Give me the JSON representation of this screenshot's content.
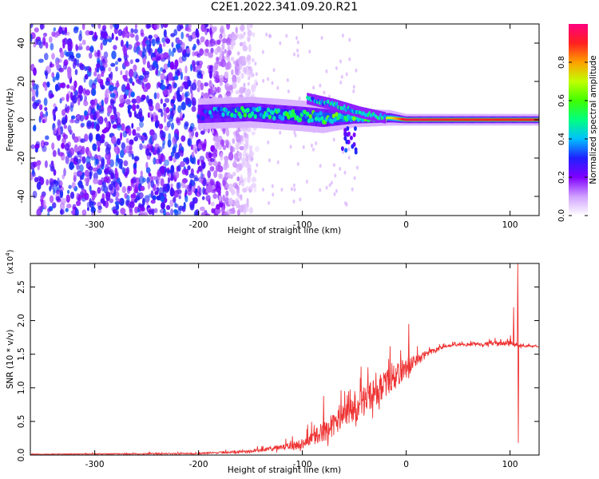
{
  "title": "C2E1.2022.341.09.20.R21",
  "chart_data": [
    {
      "type": "heatmap",
      "xlabel": "Height of straight line (km)",
      "ylabel": "Frequency (Hz)",
      "xlim": [
        -362,
        128
      ],
      "ylim": [
        -50,
        50
      ],
      "xticks": [
        -300,
        -200,
        -100,
        0,
        100
      ],
      "yticks": [
        -40,
        -20,
        0,
        20,
        40
      ],
      "colorbar": {
        "label": "Normalized spectral amplitude",
        "range": [
          0,
          1
        ],
        "ticks": [
          0.0,
          0.2,
          0.4,
          0.6,
          0.8
        ],
        "colors": [
          "#ffffff",
          "#d0a0ff",
          "#8000ff",
          "#2020ff",
          "#00c0ff",
          "#00ff80",
          "#40ff00",
          "#c0ff00",
          "#ffa000",
          "#ff2020",
          "#ff0080"
        ]
      },
      "noise_region_x": [
        -362,
        -165
      ],
      "band": [
        {
          "x": -200,
          "f": 3,
          "width": 8,
          "amp": 0.35
        },
        {
          "x": -150,
          "f": 4,
          "width": 8,
          "amp": 0.55
        },
        {
          "x": -100,
          "f": 2,
          "width": 8,
          "amp": 0.55
        },
        {
          "x": -80,
          "f": 1,
          "width": 8,
          "amp": 0.6
        },
        {
          "x": -50,
          "f": 1,
          "width": 5,
          "amp": 0.6
        },
        {
          "x": -15,
          "f": 1,
          "width": 4,
          "amp": 0.7
        },
        {
          "x": 0,
          "f": 0,
          "width": 3,
          "amp": 0.95
        },
        {
          "x": 50,
          "f": 0,
          "width": 3,
          "amp": 0.9
        },
        {
          "x": 100,
          "f": 0,
          "width": 3,
          "amp": 0.9
        },
        {
          "x": 128,
          "f": 0,
          "width": 3,
          "amp": 0.9
        }
      ],
      "branch": [
        {
          "x": -95,
          "f": 11,
          "amp": 0.4
        },
        {
          "x": -70,
          "f": 8,
          "amp": 0.45
        },
        {
          "x": -45,
          "f": 4,
          "amp": 0.45
        },
        {
          "x": -20,
          "f": 1,
          "amp": 0.5
        }
      ]
    },
    {
      "type": "line",
      "xlabel": "Height of straight line (km)",
      "ylabel": "SNR (10 * v/v)",
      "yscale_label": "(x10",
      "yscale_exp": "4",
      "yscale_close": ")",
      "xlim": [
        -362,
        128
      ],
      "ylim": [
        0,
        2.85
      ],
      "xticks": [
        -300,
        -200,
        -100,
        0,
        100
      ],
      "yticks": [
        0.0,
        0.5,
        1.0,
        1.5,
        2.0,
        2.5
      ],
      "series": [
        {
          "color": "#ee3333",
          "envelope": [
            {
              "x": -362,
              "y": 0.01,
              "spread": 0.01
            },
            {
              "x": -200,
              "y": 0.02,
              "spread": 0.02
            },
            {
              "x": -150,
              "y": 0.05,
              "spread": 0.04
            },
            {
              "x": -120,
              "y": 0.1,
              "spread": 0.08
            },
            {
              "x": -100,
              "y": 0.15,
              "spread": 0.15
            },
            {
              "x": -80,
              "y": 0.3,
              "spread": 0.3
            },
            {
              "x": -60,
              "y": 0.5,
              "spread": 0.4
            },
            {
              "x": -40,
              "y": 0.75,
              "spread": 0.45
            },
            {
              "x": -20,
              "y": 1.0,
              "spread": 0.4
            },
            {
              "x": 0,
              "y": 1.25,
              "spread": 0.3
            },
            {
              "x": 20,
              "y": 1.5,
              "spread": 0.1
            },
            {
              "x": 40,
              "y": 1.62,
              "spread": 0.04
            },
            {
              "x": 80,
              "y": 1.65,
              "spread": 0.06
            },
            {
              "x": 100,
              "y": 1.65,
              "spread": 0.08
            },
            {
              "x": 108,
              "y": 1.62,
              "spread": 0.05
            },
            {
              "x": 128,
              "y": 1.61,
              "spread": 0.02
            }
          ],
          "spikes": [
            {
              "x": -110,
              "y": 0.28
            },
            {
              "x": -80,
              "y": 0.88
            },
            {
              "x": -50,
              "y": 0.95
            },
            {
              "x": -16,
              "y": 1.62
            },
            {
              "x": 2,
              "y": 1.95
            },
            {
              "x": 100,
              "y": 1.78
            },
            {
              "x": 103,
              "y": 2.2
            },
            {
              "x": 107,
              "y": 2.85
            },
            {
              "x": 107.5,
              "y": 0.18
            }
          ]
        }
      ]
    }
  ]
}
